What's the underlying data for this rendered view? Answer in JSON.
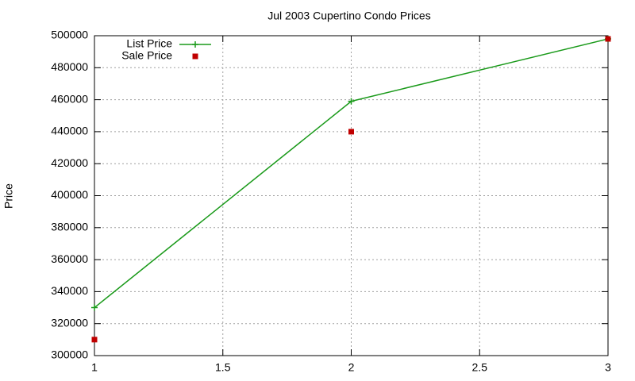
{
  "chart_data": {
    "type": "line",
    "title": "Jul 2003 Cupertino Condo Prices",
    "ylabel": "Price",
    "x": [
      1,
      2,
      3
    ],
    "series": [
      {
        "name": "List Price",
        "color": "#1a9a1a",
        "style": "linespoints",
        "values": [
          330000,
          459000,
          498000
        ]
      },
      {
        "name": "Sale Price",
        "color": "#c00000",
        "style": "points",
        "values": [
          310000,
          440000,
          498000
        ]
      }
    ],
    "xlim": [
      1,
      3
    ],
    "xticks": [
      1,
      1.5,
      2,
      2.5,
      3
    ],
    "ylim": [
      300000,
      500000
    ],
    "yticks": [
      300000,
      320000,
      340000,
      360000,
      380000,
      400000,
      420000,
      440000,
      460000,
      480000,
      500000
    ],
    "grid": true,
    "legend": "top-left"
  }
}
